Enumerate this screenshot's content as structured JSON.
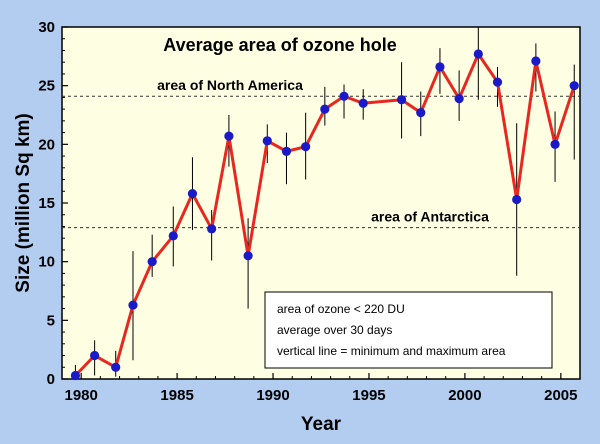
{
  "chart_data": {
    "type": "line",
    "title": "Average area of ozone hole",
    "xlabel": "Year",
    "ylabel": "Size (million Sq km)",
    "xlim": [
      1979,
      2006
    ],
    "ylim": [
      0,
      30
    ],
    "x_ticks": [
      1980,
      1985,
      1990,
      1995,
      2000,
      2005
    ],
    "y_ticks": [
      0,
      5,
      10,
      15,
      20,
      25,
      30
    ],
    "colors": {
      "line": "#e8281e",
      "marker": "#1a1ac8",
      "panel": "#fefee2",
      "background": "#b3cdf0",
      "errorbar": "#000000"
    },
    "series": [
      {
        "points": [
          {
            "x": 1979.7,
            "y": 0.3,
            "min": 0.0,
            "max": 1.2
          },
          {
            "x": 1980.7,
            "y": 2.0,
            "min": 0.3,
            "max": 3.3
          },
          {
            "x": 1981.8,
            "y": 1.0,
            "min": 0.2,
            "max": 2.4
          },
          {
            "x": 1982.7,
            "y": 6.3,
            "min": 1.6,
            "max": 10.9
          },
          {
            "x": 1983.7,
            "y": 10.0,
            "min": 8.7,
            "max": 12.3
          },
          {
            "x": 1984.8,
            "y": 12.2,
            "min": 9.6,
            "max": 14.7
          },
          {
            "x": 1985.8,
            "y": 15.8,
            "min": 12.7,
            "max": 18.9
          },
          {
            "x": 1986.8,
            "y": 12.8,
            "min": 10.1,
            "max": 14.4
          },
          {
            "x": 1987.7,
            "y": 20.7,
            "min": 18.1,
            "max": 22.5
          },
          {
            "x": 1988.7,
            "y": 10.5,
            "min": 6.0,
            "max": 13.7
          },
          {
            "x": 1989.7,
            "y": 20.3,
            "min": 18.4,
            "max": 21.7
          },
          {
            "x": 1990.7,
            "y": 19.4,
            "min": 16.6,
            "max": 21.0
          },
          {
            "x": 1991.7,
            "y": 19.8,
            "min": 17.0,
            "max": 22.7
          },
          {
            "x": 1992.7,
            "y": 23.0,
            "min": 21.6,
            "max": 24.9
          },
          {
            "x": 1993.7,
            "y": 24.1,
            "min": 22.2,
            "max": 25.1
          },
          {
            "x": 1994.7,
            "y": 23.5,
            "min": 22.1,
            "max": 24.7
          },
          {
            "x": 1996.7,
            "y": 23.8,
            "min": 20.5,
            "max": 27.0
          },
          {
            "x": 1997.7,
            "y": 22.7,
            "min": 20.7,
            "max": 24.5
          },
          {
            "x": 1998.7,
            "y": 26.6,
            "min": 24.3,
            "max": 28.2
          },
          {
            "x": 1999.7,
            "y": 23.9,
            "min": 22.0,
            "max": 26.3
          },
          {
            "x": 2000.7,
            "y": 27.7,
            "min": 23.8,
            "max": 30.0
          },
          {
            "x": 2001.7,
            "y": 25.3,
            "min": 23.2,
            "max": 26.6
          },
          {
            "x": 2002.7,
            "y": 15.3,
            "min": 8.8,
            "max": 21.8
          },
          {
            "x": 2003.7,
            "y": 27.1,
            "min": 24.5,
            "max": 28.6
          },
          {
            "x": 2004.7,
            "y": 20.0,
            "min": 16.8,
            "max": 22.8
          },
          {
            "x": 2005.7,
            "y": 25.0,
            "min": 18.7,
            "max": 26.8
          }
        ]
      }
    ],
    "reference_lines": [
      {
        "y": 24.1,
        "label": "area of North America"
      },
      {
        "y": 12.9,
        "label": "area of Antarctica"
      }
    ],
    "annotation_box": [
      "area of ozone < 220 DU",
      "average over 30 days",
      "vertical line = minimum and maximum area"
    ],
    "grid": false,
    "legend": "none"
  }
}
